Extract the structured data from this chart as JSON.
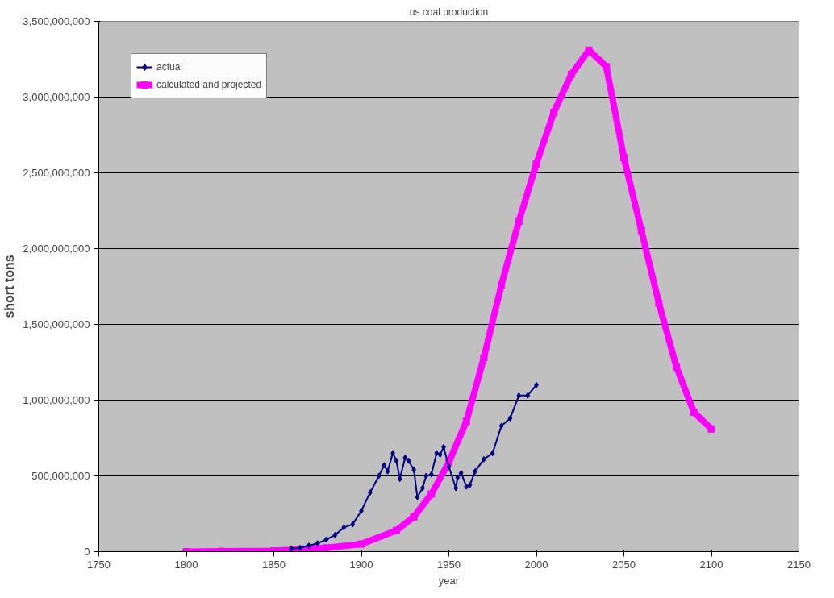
{
  "chart_data": {
    "type": "line",
    "title": "us coal production",
    "xlabel": "year",
    "ylabel": "short tons",
    "xlim": [
      1750,
      2150
    ],
    "xticks": [
      1750,
      1800,
      1850,
      1900,
      1950,
      2000,
      2050,
      2100,
      2150
    ],
    "ylim": [
      0,
      3500000000
    ],
    "yticks": [
      {
        "value": 0,
        "label": "0"
      },
      {
        "value": 500000000,
        "label": "500,000,000"
      },
      {
        "value": 1000000000,
        "label": "1,000,000,000"
      },
      {
        "value": 1500000000,
        "label": "1,500,000,000"
      },
      {
        "value": 2000000000,
        "label": "2,000,000,000"
      },
      {
        "value": 2500000000,
        "label": "2,500,000,000"
      },
      {
        "value": 3000000000,
        "label": "3,000,000,000"
      },
      {
        "value": 3500000000,
        "label": "3,500,000,000"
      }
    ],
    "grid": "y",
    "legend": "top left",
    "series": [
      {
        "name": "actual",
        "color": "#000080",
        "marker": "diamond",
        "x": [
          1860,
          1865,
          1870,
          1875,
          1880,
          1885,
          1890,
          1895,
          1900,
          1905,
          1910,
          1913,
          1915,
          1918,
          1920,
          1922,
          1925,
          1927,
          1930,
          1932,
          1935,
          1937,
          1940,
          1943,
          1945,
          1947,
          1950,
          1954,
          1955,
          1957,
          1960,
          1962,
          1965,
          1970,
          1975,
          1980,
          1985,
          1990,
          1995,
          2000
        ],
        "values": [
          20000000,
          25000000,
          40000000,
          55000000,
          80000000,
          110000000,
          160000000,
          180000000,
          270000000,
          390000000,
          500000000,
          570000000,
          530000000,
          650000000,
          600000000,
          480000000,
          620000000,
          600000000,
          540000000,
          360000000,
          420000000,
          500000000,
          510000000,
          650000000,
          640000000,
          690000000,
          560000000,
          420000000,
          490000000,
          520000000,
          430000000,
          440000000,
          530000000,
          610000000,
          650000000,
          830000000,
          880000000,
          1030000000,
          1030000000,
          1100000000
        ]
      },
      {
        "name": "calculated and projected",
        "color": "#ff00ff",
        "marker": "square",
        "x": [
          1800,
          1820,
          1850,
          1880,
          1900,
          1920,
          1930,
          1940,
          1950,
          1960,
          1970,
          1980,
          1990,
          2000,
          2010,
          2020,
          2030,
          2040,
          2050,
          2060,
          2070,
          2080,
          2090,
          2100
        ],
        "values": [
          0,
          2000000,
          5000000,
          25000000,
          50000000,
          140000000,
          230000000,
          380000000,
          590000000,
          860000000,
          1280000000,
          1760000000,
          2180000000,
          2560000000,
          2900000000,
          3150000000,
          3310000000,
          3200000000,
          2600000000,
          2120000000,
          1640000000,
          1220000000,
          920000000,
          810000000
        ]
      }
    ]
  }
}
